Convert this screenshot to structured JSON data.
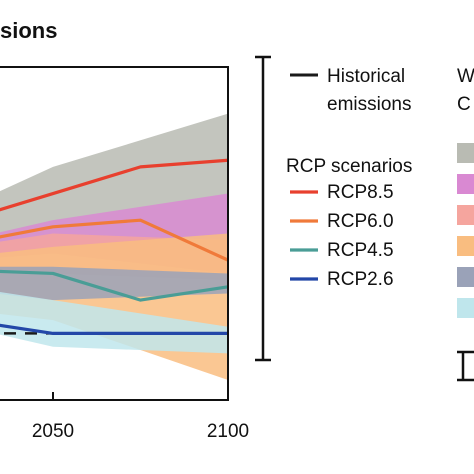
{
  "chart_data": {
    "type": "line",
    "title": "sions",
    "x_ticks": [
      "2050",
      "2100"
    ],
    "xlim": [
      2000,
      2100
    ],
    "ylim": [
      0,
      100
    ],
    "colors": {
      "historical": "#1a1a1a",
      "RCP8.5": "#e8402e",
      "RCP6.0": "#f07a3a",
      "RCP4.5": "#4a9d96",
      "RCP2.6": "#2347a8",
      "band_gray": "#b9bbb3",
      "band_pink": "#d989d2",
      "band_salmon": "#f5a59e",
      "band_orange": "#f9bd80",
      "band_slate": "#9aa2b8",
      "band_cyan": "#bfe6ec"
    },
    "series": [
      {
        "name": "RCP8.5",
        "x": [
          2000,
          2050,
          2075,
          2100
        ],
        "values": [
          46,
          62,
          70,
          72
        ]
      },
      {
        "name": "RCP6.0",
        "x": [
          2000,
          2050,
          2075,
          2100
        ],
        "values": [
          42,
          52,
          54,
          42
        ]
      },
      {
        "name": "RCP4.5",
        "x": [
          2000,
          2050,
          2075,
          2100
        ],
        "values": [
          40,
          38,
          30,
          34
        ]
      },
      {
        "name": "RCP2.6",
        "x": [
          2000,
          2025,
          2050,
          2075,
          2100
        ],
        "values": [
          34,
          24,
          20,
          20,
          20
        ]
      }
    ],
    "reference_line": {
      "x": [
        2000,
        2100
      ],
      "value": 20
    },
    "bands": [
      {
        "color_key": "band_gray",
        "x": [
          2000,
          2050,
          2100
        ],
        "lower": [
          42,
          44,
          46
        ],
        "upper": [
          46,
          70,
          86
        ]
      },
      {
        "color_key": "band_pink",
        "x": [
          2000,
          2050,
          2100
        ],
        "lower": [
          40,
          44,
          38
        ],
        "upper": [
          42,
          54,
          62
        ]
      },
      {
        "color_key": "band_salmon",
        "x": [
          2000,
          2050,
          2100
        ],
        "lower": [
          38,
          38,
          36
        ],
        "upper": [
          42,
          50,
          48
        ]
      },
      {
        "color_key": "band_orange",
        "x": [
          2000,
          2050,
          2100
        ],
        "lower": [
          30,
          24,
          6
        ],
        "upper": [
          40,
          46,
          50
        ]
      },
      {
        "color_key": "band_slate",
        "x": [
          2000,
          2050,
          2100
        ],
        "lower": [
          36,
          30,
          32
        ],
        "upper": [
          40,
          40,
          38
        ]
      },
      {
        "color_key": "band_cyan",
        "x": [
          2000,
          2050,
          2100
        ],
        "lower": [
          28,
          16,
          14
        ],
        "upper": [
          38,
          30,
          22
        ]
      }
    ],
    "range_bar": {
      "x": 2110,
      "low": 0,
      "high": 100
    },
    "legend": {
      "historical_line1": "Historical",
      "historical_line2": "emissions",
      "rcp_header": "RCP scenarios",
      "entries": [
        "RCP8.5",
        "RCP6.0",
        "RCP4.5",
        "RCP2.6"
      ],
      "right_header_line1": "W",
      "right_header_line2": "C",
      "swatch_keys": [
        "band_gray",
        "band_pink",
        "band_salmon",
        "band_orange",
        "band_slate",
        "band_cyan"
      ]
    }
  }
}
